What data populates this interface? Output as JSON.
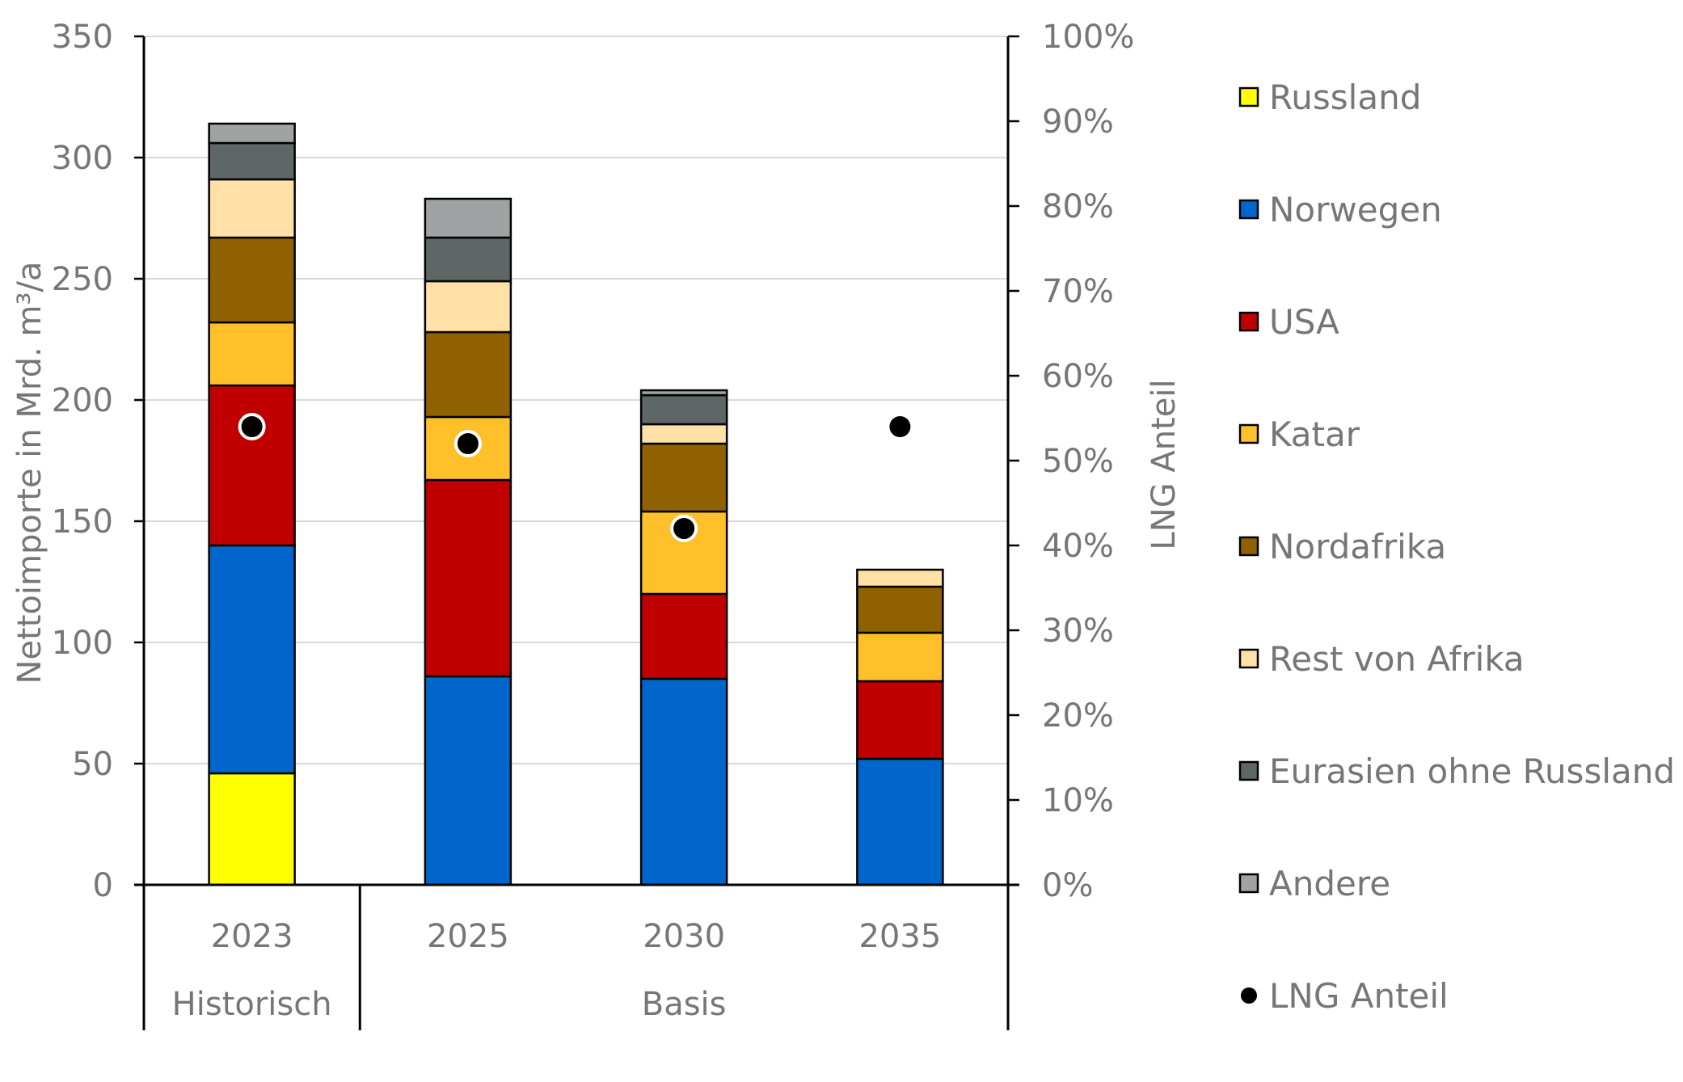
{
  "chart_data": {
    "type": "bar",
    "stacked": true,
    "categories": [
      "2023",
      "2025",
      "2030",
      "2035"
    ],
    "category_groups": [
      {
        "label": "Historisch",
        "categories": [
          "2023"
        ]
      },
      {
        "label": "Basis",
        "categories": [
          "2025",
          "2030",
          "2035"
        ]
      }
    ],
    "ylabel": "Nettoimporte in Mrd. m³/a",
    "y2label": "LNG Anteil",
    "ylim": [
      0,
      350
    ],
    "yticks": [
      "0",
      "50",
      "100",
      "150",
      "200",
      "250",
      "300",
      "350"
    ],
    "y2lim": [
      0,
      100
    ],
    "y2ticks": [
      "0%",
      "10%",
      "20%",
      "30%",
      "40%",
      "50%",
      "60%",
      "70%",
      "80%",
      "90%",
      "100%"
    ],
    "grid": true,
    "legend_position": "right",
    "series": [
      {
        "name": "Russland",
        "color": "#FFFF00",
        "values": [
          46,
          0,
          0,
          0
        ]
      },
      {
        "name": "Norwegen",
        "color": "#0066CC",
        "values": [
          94,
          86,
          85,
          52
        ]
      },
      {
        "name": "USA",
        "color": "#C00000",
        "values": [
          66,
          81,
          35,
          32
        ]
      },
      {
        "name": "Katar",
        "color": "#FFC02A",
        "values": [
          26,
          26,
          34,
          20
        ]
      },
      {
        "name": "Nordafrika",
        "color": "#8F6100",
        "values": [
          35,
          35,
          28,
          19
        ]
      },
      {
        "name": "Rest von Afrika",
        "color": "#FFE0A6",
        "values": [
          24,
          21,
          8,
          7
        ]
      },
      {
        "name": "Eurasien ohne Russland",
        "color": "#5F6666",
        "values": [
          15,
          18,
          12,
          0
        ]
      },
      {
        "name": "Andere",
        "color": "#A0A3A3",
        "values": [
          8,
          16,
          2,
          0
        ]
      }
    ],
    "lng_share": {
      "name": "LNG Anteil",
      "color": "#000000",
      "unit": "%",
      "values": [
        54,
        52,
        42,
        54
      ]
    }
  }
}
